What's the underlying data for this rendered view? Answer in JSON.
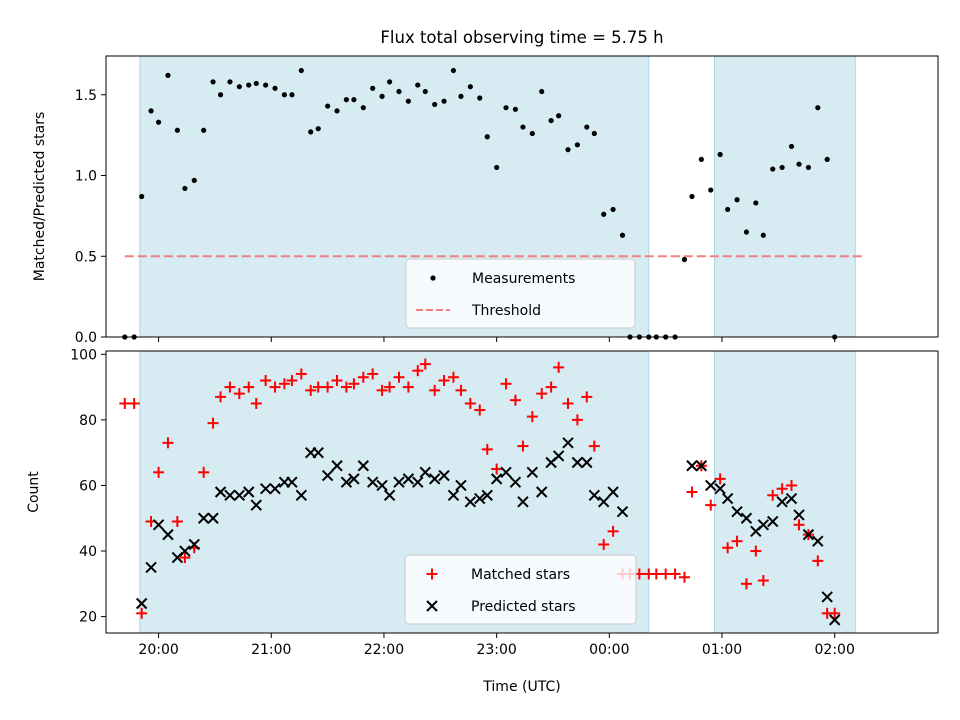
{
  "chart_data": [
    {
      "type": "scatter",
      "title": "Flux total observing time = 5.75 h",
      "xlabel": "",
      "ylabel": "Matched/Predicted stars",
      "xlim": [
        "19:32",
        "02:55"
      ],
      "ylim": [
        0,
        1.74
      ],
      "y_ticks": [
        0.0,
        0.5,
        1.0,
        1.5
      ],
      "y_tick_labels": [
        "0.0",
        "0.5",
        "1.0",
        "1.5"
      ],
      "x_ticks": [
        "20:00",
        "21:00",
        "22:00",
        "23:00",
        "00:00",
        "01:00",
        "02:00"
      ],
      "shaded_intervals": [
        [
          "19:50",
          "00:21"
        ],
        [
          "00:56",
          "02:11"
        ]
      ],
      "threshold": {
        "name": "Threshold",
        "y": 0.5,
        "x_range": [
          "19:42",
          "02:16"
        ],
        "color": "#f08080"
      },
      "legend": {
        "position": "lower-center",
        "entries": [
          "Measurements",
          "Threshold"
        ]
      },
      "series": [
        {
          "name": "Measurements",
          "marker": "dot",
          "color": "#000000",
          "points": [
            [
              "19:42",
              0.0
            ],
            [
              "19:47",
              0.0
            ],
            [
              "19:51",
              0.87
            ],
            [
              "19:56",
              1.4
            ],
            [
              "20:00",
              1.33
            ],
            [
              "20:05",
              1.62
            ],
            [
              "20:10",
              1.28
            ],
            [
              "20:14",
              0.92
            ],
            [
              "20:19",
              0.97
            ],
            [
              "20:24",
              1.28
            ],
            [
              "20:29",
              1.58
            ],
            [
              "20:33",
              1.5
            ],
            [
              "20:38",
              1.58
            ],
            [
              "20:43",
              1.55
            ],
            [
              "20:48",
              1.56
            ],
            [
              "20:52",
              1.57
            ],
            [
              "20:57",
              1.56
            ],
            [
              "21:02",
              1.54
            ],
            [
              "21:07",
              1.5
            ],
            [
              "21:11",
              1.5
            ],
            [
              "21:16",
              1.65
            ],
            [
              "21:21",
              1.27
            ],
            [
              "21:25",
              1.29
            ],
            [
              "21:30",
              1.43
            ],
            [
              "21:35",
              1.4
            ],
            [
              "21:40",
              1.47
            ],
            [
              "21:44",
              1.47
            ],
            [
              "21:49",
              1.42
            ],
            [
              "21:54",
              1.54
            ],
            [
              "21:59",
              1.49
            ],
            [
              "22:03",
              1.58
            ],
            [
              "22:08",
              1.52
            ],
            [
              "22:13",
              1.46
            ],
            [
              "22:18",
              1.56
            ],
            [
              "22:22",
              1.52
            ],
            [
              "22:27",
              1.44
            ],
            [
              "22:32",
              1.46
            ],
            [
              "22:37",
              1.65
            ],
            [
              "22:41",
              1.49
            ],
            [
              "22:46",
              1.55
            ],
            [
              "22:51",
              1.48
            ],
            [
              "22:55",
              1.24
            ],
            [
              "23:00",
              1.05
            ],
            [
              "23:05",
              1.42
            ],
            [
              "23:10",
              1.41
            ],
            [
              "23:14",
              1.3
            ],
            [
              "23:19",
              1.26
            ],
            [
              "23:24",
              1.52
            ],
            [
              "23:29",
              1.34
            ],
            [
              "23:33",
              1.37
            ],
            [
              "23:38",
              1.16
            ],
            [
              "23:43",
              1.19
            ],
            [
              "23:48",
              1.3
            ],
            [
              "23:52",
              1.26
            ],
            [
              "23:57",
              0.76
            ],
            [
              "00:02",
              0.79
            ],
            [
              "00:07",
              0.63
            ],
            [
              "00:11",
              0.0
            ],
            [
              "00:16",
              0.0
            ],
            [
              "00:21",
              0.0
            ],
            [
              "00:25",
              0.0
            ],
            [
              "00:30",
              0.0
            ],
            [
              "00:35",
              0.0
            ],
            [
              "00:40",
              0.48
            ],
            [
              "00:44",
              0.87
            ],
            [
              "00:49",
              1.1
            ],
            [
              "00:54",
              0.91
            ],
            [
              "00:59",
              1.13
            ],
            [
              "01:03",
              0.79
            ],
            [
              "01:08",
              0.85
            ],
            [
              "01:13",
              0.65
            ],
            [
              "01:18",
              0.83
            ],
            [
              "01:22",
              0.63
            ],
            [
              "01:27",
              1.04
            ],
            [
              "01:32",
              1.05
            ],
            [
              "01:37",
              1.18
            ],
            [
              "01:41",
              1.07
            ],
            [
              "01:46",
              1.05
            ],
            [
              "01:51",
              1.42
            ],
            [
              "01:56",
              1.1
            ],
            [
              "02:00",
              0.0
            ]
          ]
        }
      ]
    },
    {
      "type": "scatter",
      "title": "",
      "xlabel": "Time (UTC)",
      "ylabel": "Count",
      "xlim": [
        "19:32",
        "02:55"
      ],
      "ylim": [
        15,
        101
      ],
      "y_ticks": [
        20,
        40,
        60,
        80,
        100
      ],
      "y_tick_labels": [
        "20",
        "40",
        "60",
        "80",
        "100"
      ],
      "x_ticks": [
        "20:00",
        "21:00",
        "22:00",
        "23:00",
        "00:00",
        "01:00",
        "02:00"
      ],
      "x_tick_labels": [
        "20:00",
        "21:00",
        "22:00",
        "23:00",
        "00:00",
        "01:00",
        "02:00"
      ],
      "shaded_intervals": [
        [
          "19:50",
          "00:21"
        ],
        [
          "00:56",
          "02:11"
        ]
      ],
      "legend": {
        "position": "lower-center",
        "entries": [
          "Matched stars",
          "Predicted stars"
        ]
      },
      "series": [
        {
          "name": "Matched stars",
          "marker": "plus",
          "color": "#ff0000",
          "points": [
            [
              "19:42",
              85
            ],
            [
              "19:47",
              85
            ],
            [
              "19:51",
              21
            ],
            [
              "19:56",
              49
            ],
            [
              "20:00",
              64
            ],
            [
              "20:05",
              73
            ],
            [
              "20:10",
              49
            ],
            [
              "20:14",
              38
            ],
            [
              "20:19",
              41
            ],
            [
              "20:24",
              64
            ],
            [
              "20:29",
              79
            ],
            [
              "20:33",
              87
            ],
            [
              "20:38",
              90
            ],
            [
              "20:43",
              88
            ],
            [
              "20:48",
              90
            ],
            [
              "20:52",
              85
            ],
            [
              "20:57",
              92
            ],
            [
              "21:02",
              90
            ],
            [
              "21:07",
              91
            ],
            [
              "21:11",
              92
            ],
            [
              "21:16",
              94
            ],
            [
              "21:21",
              89
            ],
            [
              "21:25",
              90
            ],
            [
              "21:30",
              90
            ],
            [
              "21:35",
              92
            ],
            [
              "21:40",
              90
            ],
            [
              "21:44",
              91
            ],
            [
              "21:49",
              93
            ],
            [
              "21:54",
              94
            ],
            [
              "21:59",
              89
            ],
            [
              "22:03",
              90
            ],
            [
              "22:08",
              93
            ],
            [
              "22:13",
              90
            ],
            [
              "22:18",
              95
            ],
            [
              "22:22",
              97
            ],
            [
              "22:27",
              89
            ],
            [
              "22:32",
              92
            ],
            [
              "22:37",
              93
            ],
            [
              "22:41",
              89
            ],
            [
              "22:46",
              85
            ],
            [
              "22:51",
              83
            ],
            [
              "22:55",
              71
            ],
            [
              "23:00",
              65
            ],
            [
              "23:05",
              91
            ],
            [
              "23:10",
              86
            ],
            [
              "23:14",
              72
            ],
            [
              "23:19",
              81
            ],
            [
              "23:24",
              88
            ],
            [
              "23:29",
              90
            ],
            [
              "23:33",
              96
            ],
            [
              "23:38",
              85
            ],
            [
              "23:43",
              80
            ],
            [
              "23:48",
              87
            ],
            [
              "23:52",
              72
            ],
            [
              "23:57",
              42
            ],
            [
              "00:02",
              46
            ],
            [
              "00:07",
              33
            ],
            [
              "00:11",
              33
            ],
            [
              "00:16",
              33
            ],
            [
              "00:21",
              33
            ],
            [
              "00:25",
              33
            ],
            [
              "00:30",
              33
            ],
            [
              "00:35",
              33
            ],
            [
              "00:40",
              32
            ],
            [
              "00:44",
              58
            ],
            [
              "00:49",
              66
            ],
            [
              "00:54",
              54
            ],
            [
              "00:59",
              62
            ],
            [
              "01:03",
              41
            ],
            [
              "01:08",
              43
            ],
            [
              "01:13",
              30
            ],
            [
              "01:18",
              40
            ],
            [
              "01:22",
              31
            ],
            [
              "01:27",
              57
            ],
            [
              "01:32",
              59
            ],
            [
              "01:37",
              60
            ],
            [
              "01:41",
              48
            ],
            [
              "01:46",
              45
            ],
            [
              "01:51",
              37
            ],
            [
              "01:56",
              21
            ],
            [
              "02:00",
              21
            ]
          ]
        },
        {
          "name": "Predicted stars",
          "marker": "x",
          "color": "#000000",
          "points": [
            [
              "19:51",
              24
            ],
            [
              "19:56",
              35
            ],
            [
              "20:00",
              48
            ],
            [
              "20:05",
              45
            ],
            [
              "20:10",
              38
            ],
            [
              "20:14",
              40
            ],
            [
              "20:19",
              42
            ],
            [
              "20:24",
              50
            ],
            [
              "20:29",
              50
            ],
            [
              "20:33",
              58
            ],
            [
              "20:38",
              57
            ],
            [
              "20:43",
              57
            ],
            [
              "20:48",
              58
            ],
            [
              "20:52",
              54
            ],
            [
              "20:57",
              59
            ],
            [
              "21:02",
              59
            ],
            [
              "21:07",
              61
            ],
            [
              "21:11",
              61
            ],
            [
              "21:16",
              57
            ],
            [
              "21:21",
              70
            ],
            [
              "21:25",
              70
            ],
            [
              "21:30",
              63
            ],
            [
              "21:35",
              66
            ],
            [
              "21:40",
              61
            ],
            [
              "21:44",
              62
            ],
            [
              "21:49",
              66
            ],
            [
              "21:54",
              61
            ],
            [
              "21:59",
              60
            ],
            [
              "22:03",
              57
            ],
            [
              "22:08",
              61
            ],
            [
              "22:13",
              62
            ],
            [
              "22:18",
              61
            ],
            [
              "22:22",
              64
            ],
            [
              "22:27",
              62
            ],
            [
              "22:32",
              63
            ],
            [
              "22:37",
              57
            ],
            [
              "22:41",
              60
            ],
            [
              "22:46",
              55
            ],
            [
              "22:51",
              56
            ],
            [
              "22:55",
              57
            ],
            [
              "23:00",
              62
            ],
            [
              "23:05",
              64
            ],
            [
              "23:10",
              61
            ],
            [
              "23:14",
              55
            ],
            [
              "23:19",
              64
            ],
            [
              "23:24",
              58
            ],
            [
              "23:29",
              67
            ],
            [
              "23:33",
              69
            ],
            [
              "23:38",
              73
            ],
            [
              "23:43",
              67
            ],
            [
              "23:48",
              67
            ],
            [
              "23:52",
              57
            ],
            [
              "23:57",
              55
            ],
            [
              "00:02",
              58
            ],
            [
              "00:07",
              52
            ],
            [
              "00:44",
              66
            ],
            [
              "00:49",
              66
            ],
            [
              "00:54",
              60
            ],
            [
              "00:59",
              59
            ],
            [
              "01:03",
              56
            ],
            [
              "01:08",
              52
            ],
            [
              "01:13",
              50
            ],
            [
              "01:18",
              46
            ],
            [
              "01:22",
              48
            ],
            [
              "01:27",
              49
            ],
            [
              "01:32",
              55
            ],
            [
              "01:37",
              56
            ],
            [
              "01:41",
              51
            ],
            [
              "01:46",
              45
            ],
            [
              "01:51",
              43
            ],
            [
              "01:56",
              26
            ],
            [
              "02:00",
              19
            ]
          ]
        }
      ]
    }
  ]
}
